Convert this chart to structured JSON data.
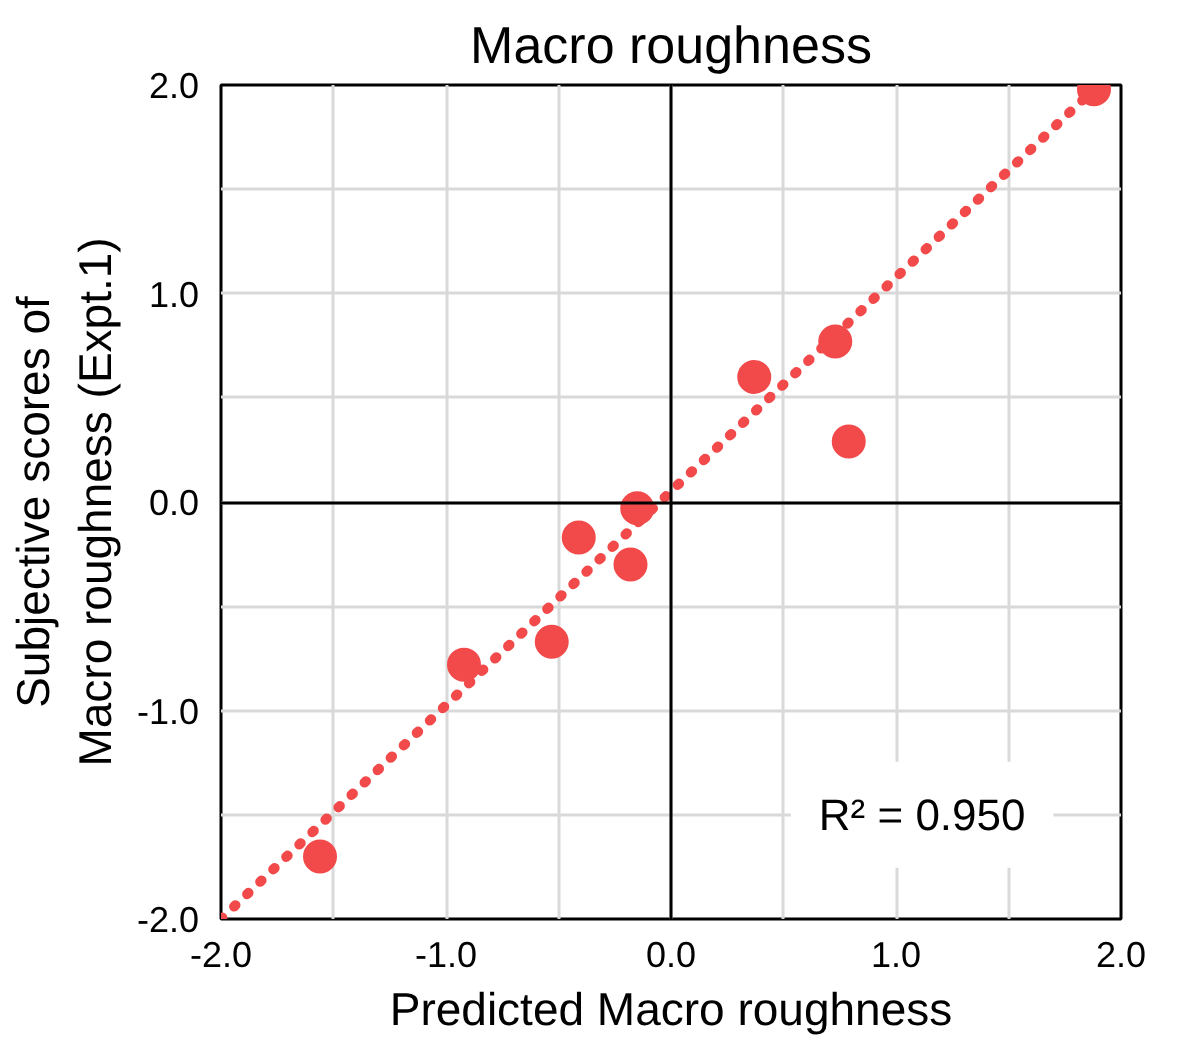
{
  "chart_data": {
    "type": "scatter",
    "title": "Macro roughness",
    "xlabel": "Predicted Macro roughness",
    "ylabel": "Subjective scores of\nMacro roughness (Expt.1)",
    "annotations": [
      "R² = 0.950"
    ],
    "series": [
      {
        "color": "#f24a4a",
        "marker": "circle",
        "x": [
          1.88,
          0.37,
          0.73,
          0.79,
          -0.15,
          -0.41,
          -0.18,
          -0.92,
          -0.53,
          -1.56
        ],
        "values": [
          1.98,
          0.6,
          0.77,
          0.29,
          -0.03,
          -0.17,
          -0.3,
          -0.78,
          -0.67,
          -1.7
        ]
      },
      {
        "type": "line",
        "color": "#f24a4a",
        "line_style": "dotted",
        "x": [
          -2.0,
          1.9
        ],
        "values": [
          -2.0,
          2.0
        ]
      }
    ],
    "xlim": [
      -2.0,
      2.0
    ],
    "ylim": [
      -2.0,
      2.0
    ],
    "xticks": [
      {
        "value": -2.0,
        "label": "-2.0"
      },
      {
        "value": -1.5,
        "label": null
      },
      {
        "value": -1.0,
        "label": "-1.0"
      },
      {
        "value": -0.5,
        "label": null
      },
      {
        "value": 0.0,
        "label": "0.0"
      },
      {
        "value": 0.5,
        "label": null
      },
      {
        "value": 1.0,
        "label": "1.0"
      },
      {
        "value": 1.5,
        "label": null
      },
      {
        "value": 2.0,
        "label": "2.0"
      }
    ],
    "yticks": [
      {
        "value": -2.0,
        "label": "-2.0"
      },
      {
        "value": -1.5,
        "label": null
      },
      {
        "value": -1.0,
        "label": "-1.0"
      },
      {
        "value": -0.5,
        "label": null
      },
      {
        "value": 0.0,
        "label": "0.0"
      },
      {
        "value": 0.5,
        "label": null
      },
      {
        "value": 1.0,
        "label": "1.0"
      },
      {
        "value": 1.5,
        "label": null
      },
      {
        "value": 2.0,
        "label": "2.0"
      }
    ],
    "grid": true
  }
}
